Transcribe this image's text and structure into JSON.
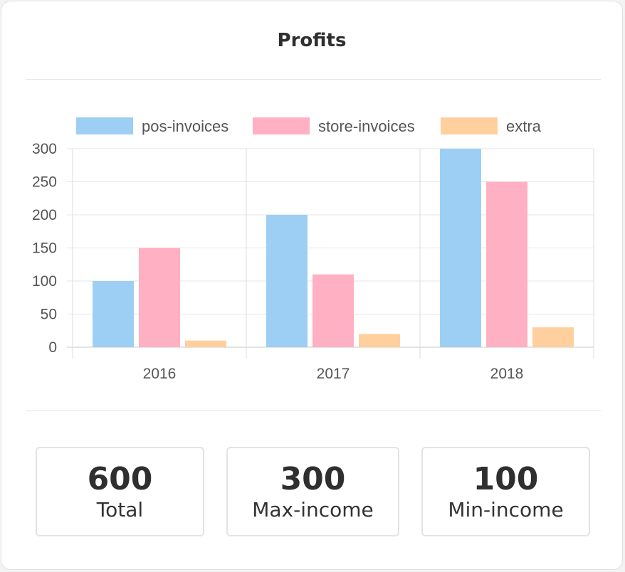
{
  "card": {
    "title": "Profits"
  },
  "chart_data": {
    "type": "bar",
    "categories": [
      "2016",
      "2017",
      "2018"
    ],
    "series": [
      {
        "name": "pos-invoices",
        "values": [
          100,
          200,
          300
        ],
        "color": "#9dcff5"
      },
      {
        "name": "store-invoices",
        "values": [
          150,
          110,
          250
        ],
        "color": "#ffb0c2"
      },
      {
        "name": "extra",
        "values": [
          10,
          20,
          30
        ],
        "color": "#ffd09e"
      }
    ],
    "ylim": [
      0,
      300
    ],
    "yticks": [
      0,
      50,
      100,
      150,
      200,
      250,
      300
    ],
    "grid": true,
    "legend": "top"
  },
  "stats": [
    {
      "value": "600",
      "label": "Total"
    },
    {
      "value": "300",
      "label": "Max-income"
    },
    {
      "value": "100",
      "label": "Min-income"
    }
  ]
}
